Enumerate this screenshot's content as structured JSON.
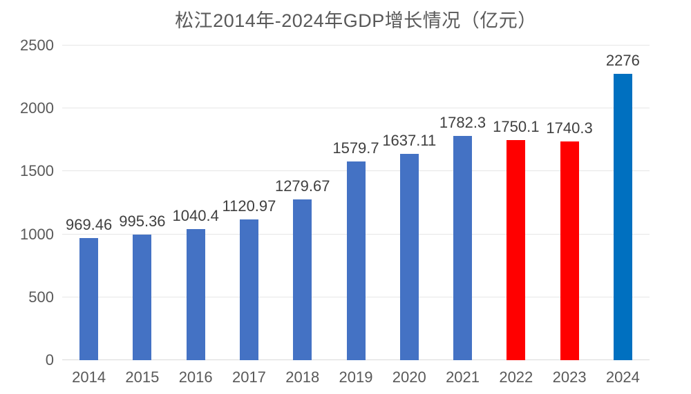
{
  "chart_data": {
    "type": "bar",
    "title": "松江2014年-2024年GDP增长情况（亿元）",
    "categories": [
      "2014",
      "2015",
      "2016",
      "2017",
      "2018",
      "2019",
      "2020",
      "2021",
      "2022",
      "2023",
      "2024"
    ],
    "values": [
      969.46,
      995.36,
      1040.4,
      1120.97,
      1279.67,
      1579.7,
      1637.11,
      1782.3,
      1750.1,
      1740.3,
      2276
    ],
    "data_labels": [
      "969.46",
      "995.36",
      "1040.4",
      "1120.97",
      "1279.67",
      "1579.7",
      "1637.11",
      "1782.3",
      "1750.1",
      "1740.3",
      "2276"
    ],
    "bar_colors": [
      "#4472C4",
      "#4472C4",
      "#4472C4",
      "#4472C4",
      "#4472C4",
      "#4472C4",
      "#4472C4",
      "#4472C4",
      "#FF0000",
      "#FF0000",
      "#0070C0"
    ],
    "xlabel": "",
    "ylabel": "",
    "ylim": [
      0,
      2500
    ],
    "yticks": [
      0,
      500,
      1000,
      1500,
      2000,
      2500
    ],
    "grid": true,
    "legend": false,
    "colors": {
      "default_bar": "#4472C4",
      "highlight_red": "#FF0000",
      "highlight_blue": "#0070C0",
      "gridline": "#E6E6E6",
      "axis_line": "#D9D9D9",
      "tick_text": "#595959",
      "title_text": "#595959",
      "data_label_text": "#3F3F3F",
      "background": "#FFFFFF"
    }
  }
}
